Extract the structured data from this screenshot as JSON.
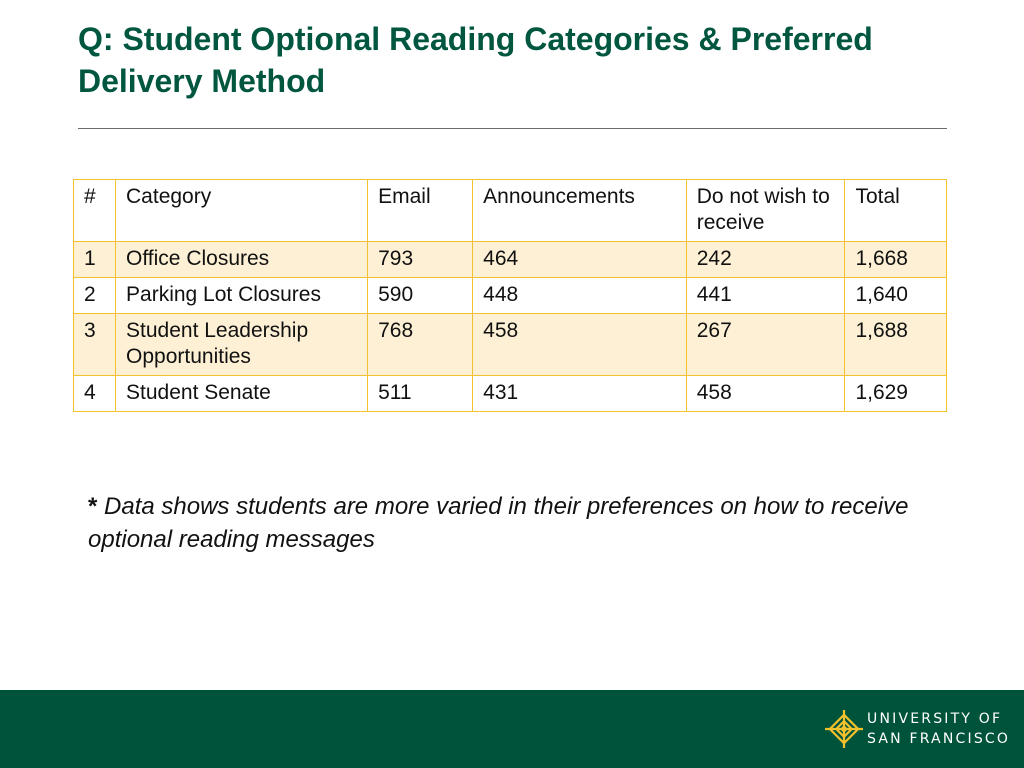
{
  "slide": {
    "title": "Q: Student Optional Reading Categories & Preferred Delivery Method"
  },
  "table": {
    "headers": [
      "#",
      "Category",
      "Email",
      "Announcements",
      "Do not wish to receive",
      "Total"
    ],
    "rows": [
      [
        "1",
        "Office Closures",
        "793",
        "464",
        "242",
        "1,668"
      ],
      [
        "2",
        "Parking Lot Closures",
        "590",
        "448",
        "441",
        "1,640"
      ],
      [
        "3",
        "Student Leadership Opportunities",
        "768",
        "458",
        "267",
        "1,688"
      ],
      [
        "4",
        "Student Senate",
        "511",
        "431",
        "458",
        "1,629"
      ]
    ]
  },
  "note": {
    "marker": "*",
    "text": "Data shows students are more varied in their preferences on how to receive optional reading messages"
  },
  "footer": {
    "logo_line1": "UNIVERSITY OF",
    "logo_line2": "SAN FRANCISCO",
    "background_color": "#00533b",
    "logo_color": "#f2c12e",
    "logo_icon": "university-crest-icon"
  },
  "colors": {
    "title": "#00563f",
    "table_border": "#f2c12e",
    "table_band": "#fdf0d5"
  }
}
